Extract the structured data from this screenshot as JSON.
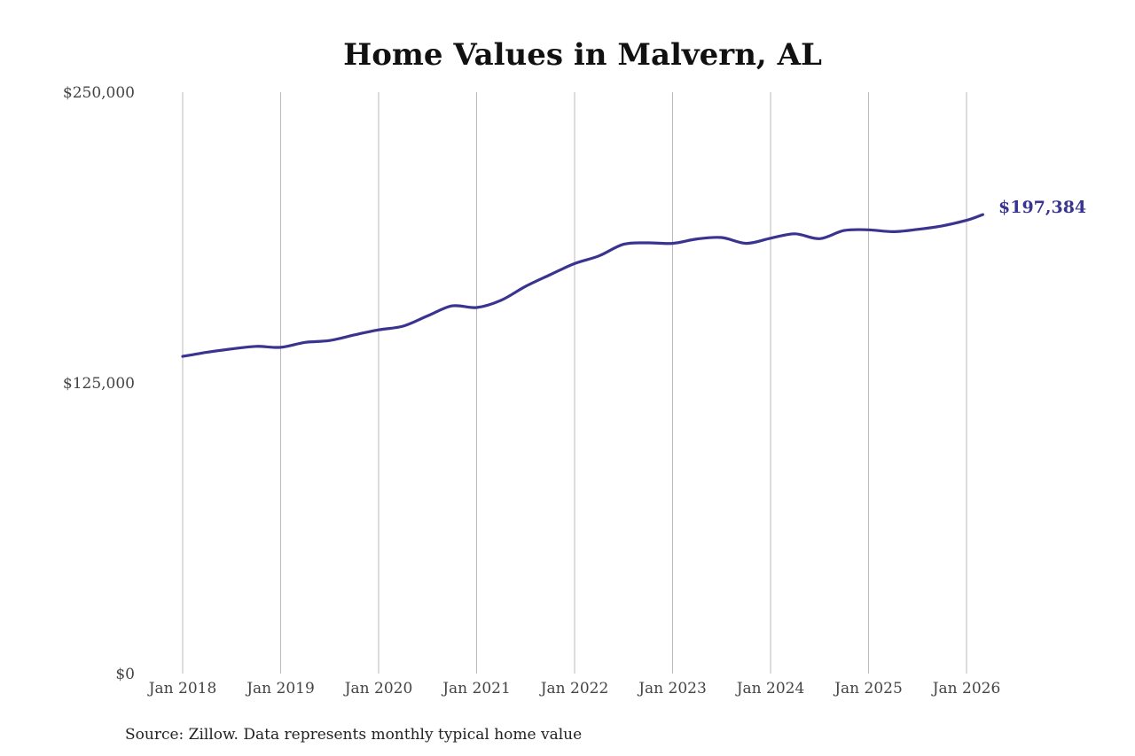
{
  "chart_data": {
    "type": "line",
    "title": "Home Values in Malvern, AL",
    "source": "Source: Zillow. Data represents monthly typical home value",
    "ylim": [
      0,
      250000
    ],
    "y_ticks": [
      {
        "value": 0,
        "label": "$0"
      },
      {
        "value": 125000,
        "label": "$125,000"
      },
      {
        "value": 250000,
        "label": "$250,000"
      }
    ],
    "x_ticks": [
      "Jan 2018",
      "Jan 2019",
      "Jan 2020",
      "Jan 2021",
      "Jan 2022",
      "Jan 2023",
      "Jan 2024",
      "Jan 2025",
      "Jan 2026"
    ],
    "grid": {
      "vertical": true,
      "horizontal": false
    },
    "end_label": "$197,384",
    "colors": {
      "line": "#3a3491",
      "grid": "#bbbbbb"
    },
    "series": [
      {
        "values": [
          {
            "x": "2018-01",
            "y": 136400
          },
          {
            "x": "2018-04",
            "y": 138200
          },
          {
            "x": "2018-07",
            "y": 139600
          },
          {
            "x": "2018-10",
            "y": 140700
          },
          {
            "x": "2019-01",
            "y": 140300
          },
          {
            "x": "2019-04",
            "y": 142400
          },
          {
            "x": "2019-07",
            "y": 143200
          },
          {
            "x": "2019-10",
            "y": 145600
          },
          {
            "x": "2020-01",
            "y": 147800
          },
          {
            "x": "2020-04",
            "y": 149400
          },
          {
            "x": "2020-07",
            "y": 153800
          },
          {
            "x": "2020-10",
            "y": 158100
          },
          {
            "x": "2021-01",
            "y": 157400
          },
          {
            "x": "2021-04",
            "y": 160500
          },
          {
            "x": "2021-07",
            "y": 166500
          },
          {
            "x": "2021-10",
            "y": 171500
          },
          {
            "x": "2022-01",
            "y": 176300
          },
          {
            "x": "2022-04",
            "y": 179600
          },
          {
            "x": "2022-07",
            "y": 184600
          },
          {
            "x": "2022-10",
            "y": 185200
          },
          {
            "x": "2023-01",
            "y": 185000
          },
          {
            "x": "2023-04",
            "y": 186900
          },
          {
            "x": "2023-07",
            "y": 187500
          },
          {
            "x": "2023-10",
            "y": 185000
          },
          {
            "x": "2024-01",
            "y": 187200
          },
          {
            "x": "2024-04",
            "y": 189100
          },
          {
            "x": "2024-07",
            "y": 187000
          },
          {
            "x": "2024-10",
            "y": 190500
          },
          {
            "x": "2025-01",
            "y": 190800
          },
          {
            "x": "2025-04",
            "y": 190000
          },
          {
            "x": "2025-07",
            "y": 191000
          },
          {
            "x": "2025-10",
            "y": 192500
          },
          {
            "x": "2026-01",
            "y": 194900
          },
          {
            "x": "2026-03",
            "y": 197384
          }
        ]
      }
    ]
  }
}
